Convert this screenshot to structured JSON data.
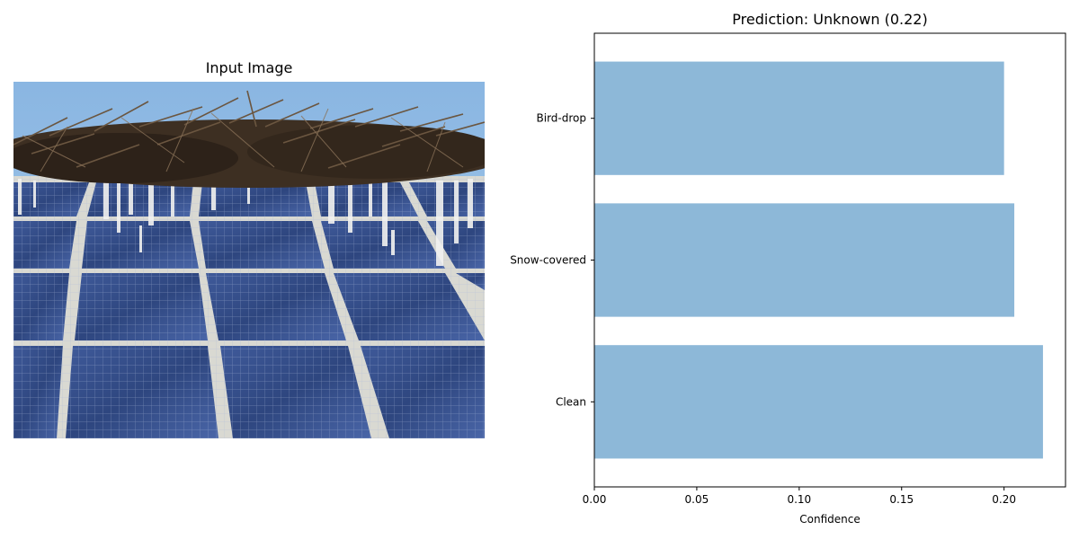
{
  "image_panel": {
    "title": "Input Image",
    "subject": "solar panels with bird nest on top and white bird droppings"
  },
  "chart_data": {
    "type": "bar",
    "orientation": "horizontal",
    "title": "Prediction: Unknown (0.22)",
    "xlabel": "Confidence",
    "ylabel": "",
    "categories": [
      "Clean",
      "Snow-covered",
      "Bird-drop"
    ],
    "values": [
      0.219,
      0.205,
      0.2
    ],
    "xlim": [
      0,
      0.23
    ],
    "xticks": [
      "0.00",
      "0.05",
      "0.10",
      "0.15",
      "0.20"
    ],
    "bar_color": "#8db8d8",
    "grid": false
  }
}
